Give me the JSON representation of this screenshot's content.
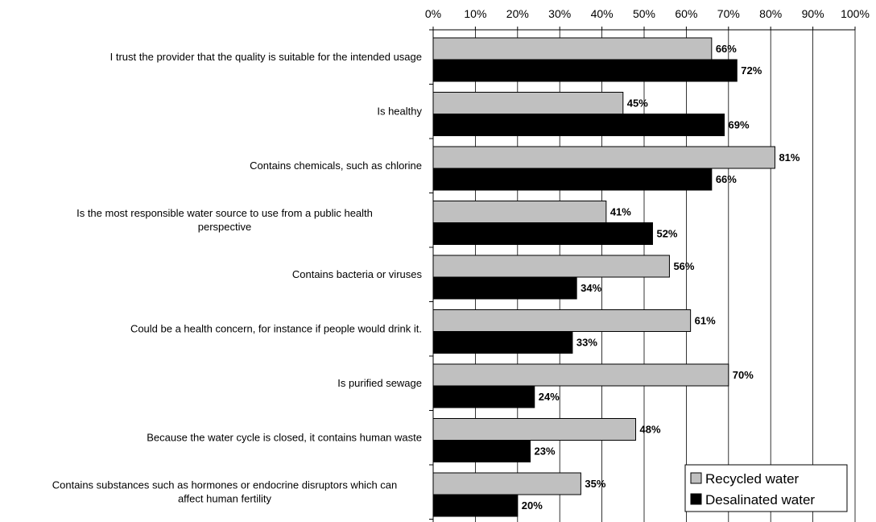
{
  "chart_data": {
    "type": "bar",
    "orientation": "horizontal",
    "xlim": [
      0,
      100
    ],
    "x_ticks": [
      "0%",
      "10%",
      "20%",
      "30%",
      "40%",
      "50%",
      "60%",
      "70%",
      "80%",
      "90%",
      "100%"
    ],
    "grid": true,
    "x_axis_position": "top",
    "legend_position": "bottom-right",
    "categories": [
      "I trust the provider that the quality is suitable for the intended usage",
      "Is healthy",
      "Contains chemicals, such as chlorine",
      "Is the most responsible water source to use from a public health perspective",
      "Contains bacteria or viruses",
      "Could be a health concern, for instance if people would drink it.",
      "Is purified sewage",
      "Because the water cycle is closed, it contains human waste",
      "Contains substances such as hormones or endocrine disruptors which can affect human fertility"
    ],
    "series": [
      {
        "name": "Recycled water",
        "color": "#c0c0c0",
        "values": [
          66,
          45,
          81,
          41,
          56,
          61,
          70,
          48,
          35
        ],
        "labels": [
          "66%",
          "45%",
          "81%",
          "41%",
          "56%",
          "61%",
          "70%",
          "48%",
          "35%"
        ]
      },
      {
        "name": "Desalinated water",
        "color": "#000000",
        "values": [
          72,
          69,
          66,
          52,
          34,
          33,
          24,
          23,
          20
        ],
        "labels": [
          "72%",
          "69%",
          "66%",
          "52%",
          "34%",
          "33%",
          "24%",
          "23%",
          "20%"
        ]
      }
    ]
  }
}
